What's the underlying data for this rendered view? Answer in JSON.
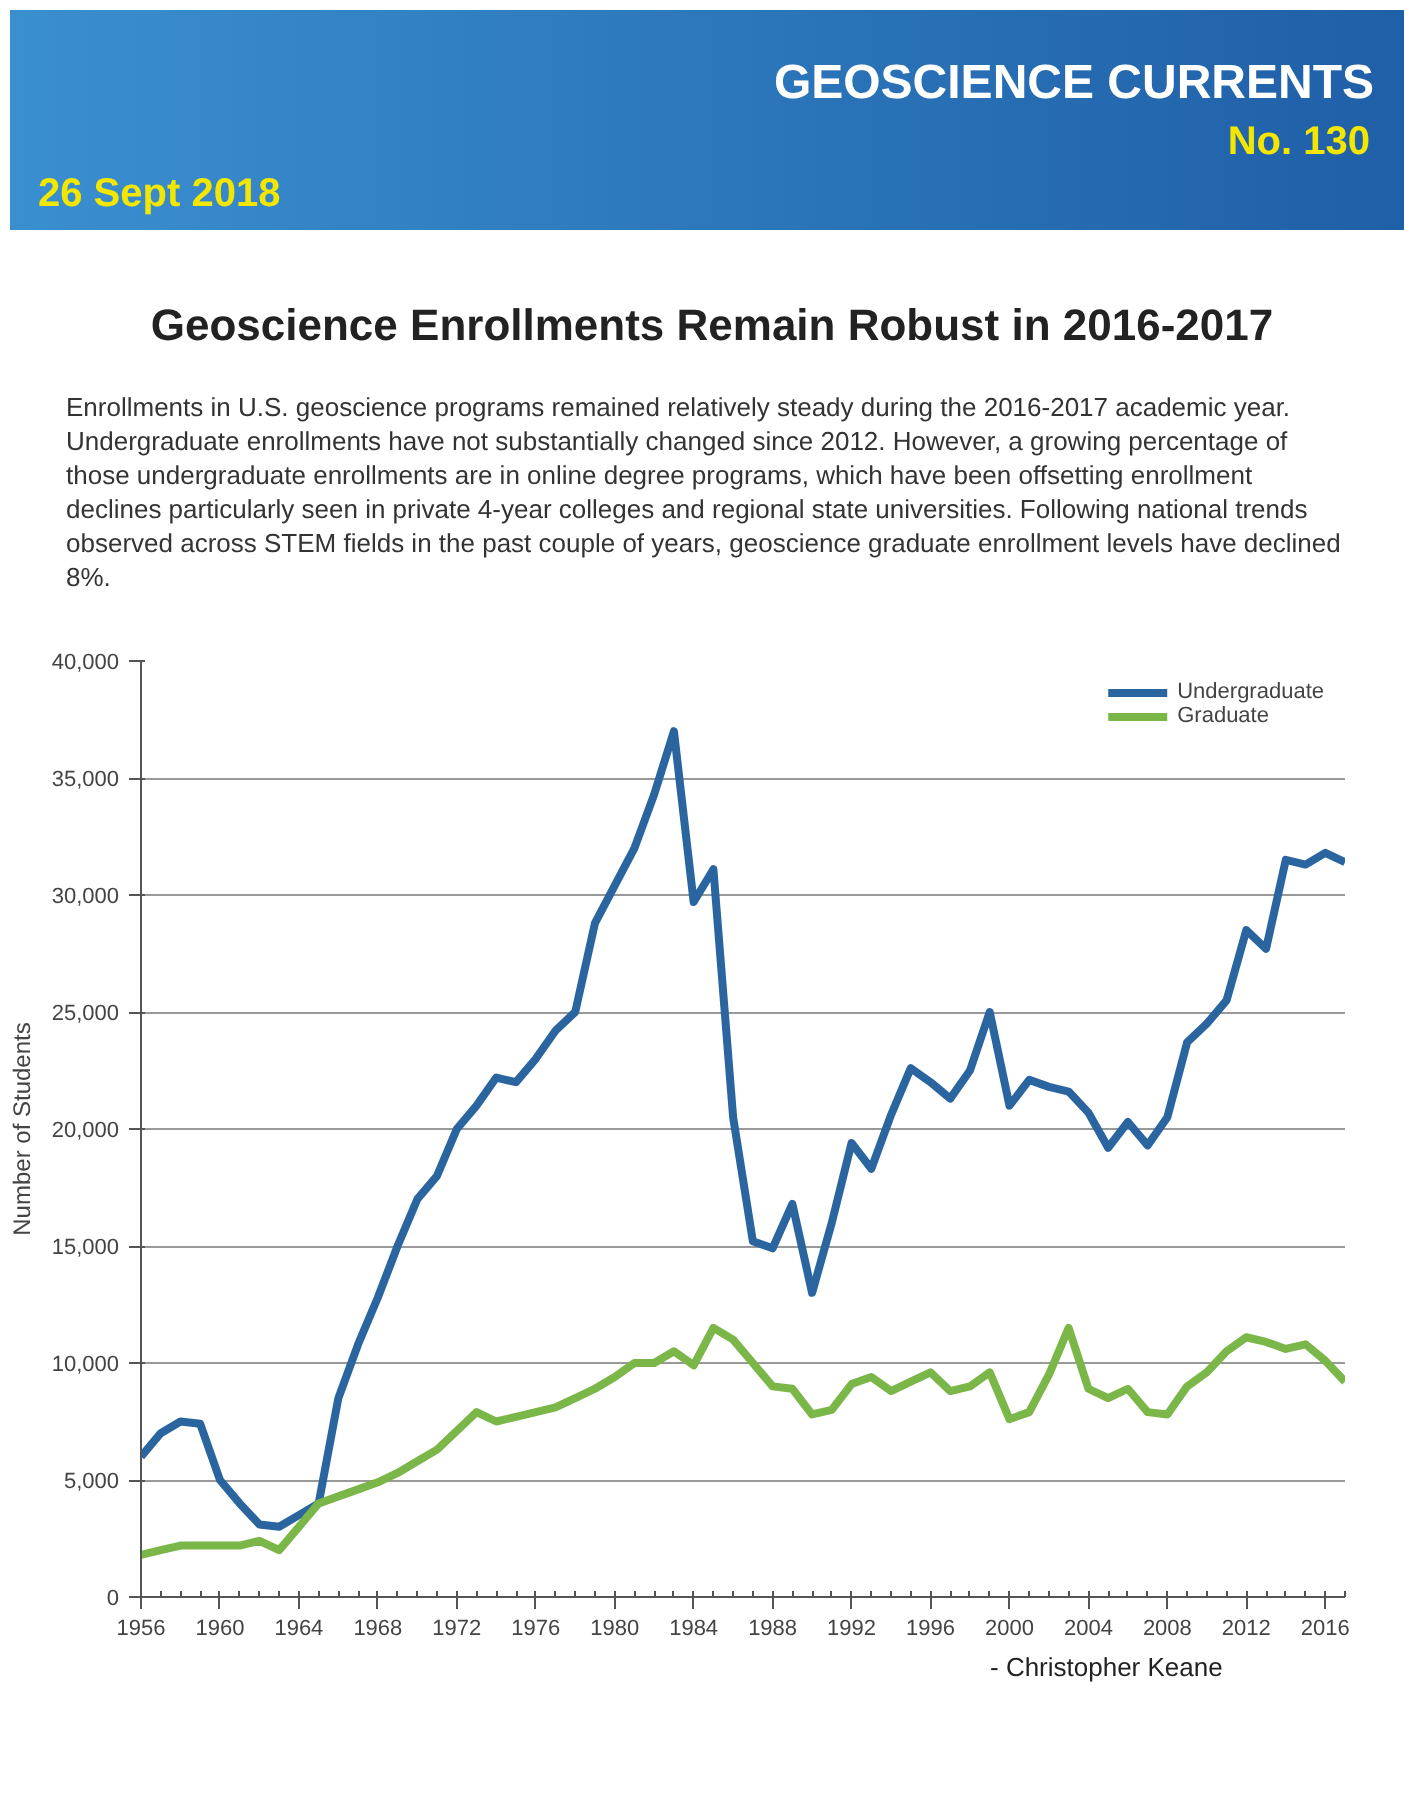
{
  "chart_data": {
    "type": "line",
    "title": "Geoscience Enrollments Remain Robust in 2016-2017",
    "annotations": [
      "GEOSCIENCE CURRENTS",
      "No. 130",
      "26 Sept 2018",
      "Enrollments in U.S. geoscience programs remained relatively steady during the 2016-2017 academic year.   Undergraduate enrollments have not substantially changed since 2012.  However, a growing percentage of those undergraduate enrollments are in online degree programs, which have been offsetting enrollment declines particularly seen in private 4-year colleges and regional state universities.   Following national trends observed across STEM fields in the past couple of years, geoscience graduate enrollment levels have declined 8%.",
      "- Christopher Keane"
    ],
    "ylabel": "Number of Students",
    "x": [
      1956,
      1957,
      1958,
      1959,
      1960,
      1961,
      1962,
      1963,
      1964,
      1965,
      1966,
      1967,
      1968,
      1969,
      1970,
      1971,
      1972,
      1973,
      1974,
      1975,
      1976,
      1977,
      1978,
      1979,
      1980,
      1981,
      1982,
      1983,
      1984,
      1985,
      1986,
      1987,
      1988,
      1989,
      1990,
      1991,
      1992,
      1993,
      1994,
      1995,
      1996,
      1997,
      1998,
      1999,
      2000,
      2001,
      2002,
      2003,
      2004,
      2005,
      2006,
      2007,
      2008,
      2009,
      2010,
      2011,
      2012,
      2013,
      2014,
      2015,
      2016,
      2017
    ],
    "series": [
      {
        "name": "Undergraduate",
        "color": "#2a65a0",
        "values": [
          6000,
          7000,
          7500,
          7400,
          5000,
          4000,
          3100,
          3000,
          3500,
          4000,
          8500,
          10800,
          12800,
          15000,
          17000,
          18000,
          20000,
          21000,
          22200,
          22000,
          23000,
          24200,
          25000,
          28800,
          30400,
          32000,
          34300,
          37000,
          29700,
          31100,
          20500,
          15200,
          14900,
          16800,
          13000,
          16000,
          19400,
          18300,
          20600,
          22600,
          22000,
          21300,
          22500,
          25000,
          21000,
          22100,
          21800,
          21600,
          20700,
          19200,
          20300,
          19300,
          20500,
          23700,
          24500,
          25500,
          28500,
          27700,
          31500,
          31300,
          31800,
          31400
        ]
      },
      {
        "name": "Graduate",
        "color": "#7ab648",
        "values": [
          1800,
          2000,
          2200,
          2200,
          2200,
          2200,
          2400,
          2000,
          3000,
          4000,
          4300,
          4600,
          4900,
          5300,
          5800,
          6300,
          7100,
          7900,
          7500,
          7700,
          7900,
          8100,
          8500,
          8900,
          9400,
          10000,
          10000,
          10500,
          9900,
          11500,
          11000,
          10000,
          9000,
          8900,
          7800,
          8000,
          9100,
          9400,
          8800,
          9200,
          9600,
          8800,
          9000,
          9600,
          7600,
          7900,
          9500,
          11500,
          8900,
          8500,
          8900,
          7900,
          7800,
          9000,
          9600,
          10500,
          11100,
          10900,
          10600,
          10800,
          10100,
          9200
        ]
      }
    ],
    "xlim": [
      1956,
      2017
    ],
    "xticks": [
      1956,
      1960,
      1964,
      1968,
      1972,
      1976,
      1980,
      1984,
      1988,
      1992,
      1996,
      2000,
      2004,
      2008,
      2012,
      2016
    ],
    "ylim": [
      0,
      40000
    ],
    "yticks": [
      0,
      {
        "value": 5000,
        "label": "5,000"
      },
      {
        "value": 10000,
        "label": "10,000"
      },
      {
        "value": 15000,
        "label": "15,000"
      },
      {
        "value": 20000,
        "label": "20,000"
      },
      {
        "value": 25000,
        "label": "25,000"
      },
      {
        "value": 30000,
        "label": "30,000"
      },
      {
        "value": 35000,
        "label": "35,000"
      },
      {
        "value": 40000,
        "label": "40,000"
      }
    ],
    "grid": "y",
    "legend": "top right",
    "marker": "none",
    "line_style": "solid"
  }
}
